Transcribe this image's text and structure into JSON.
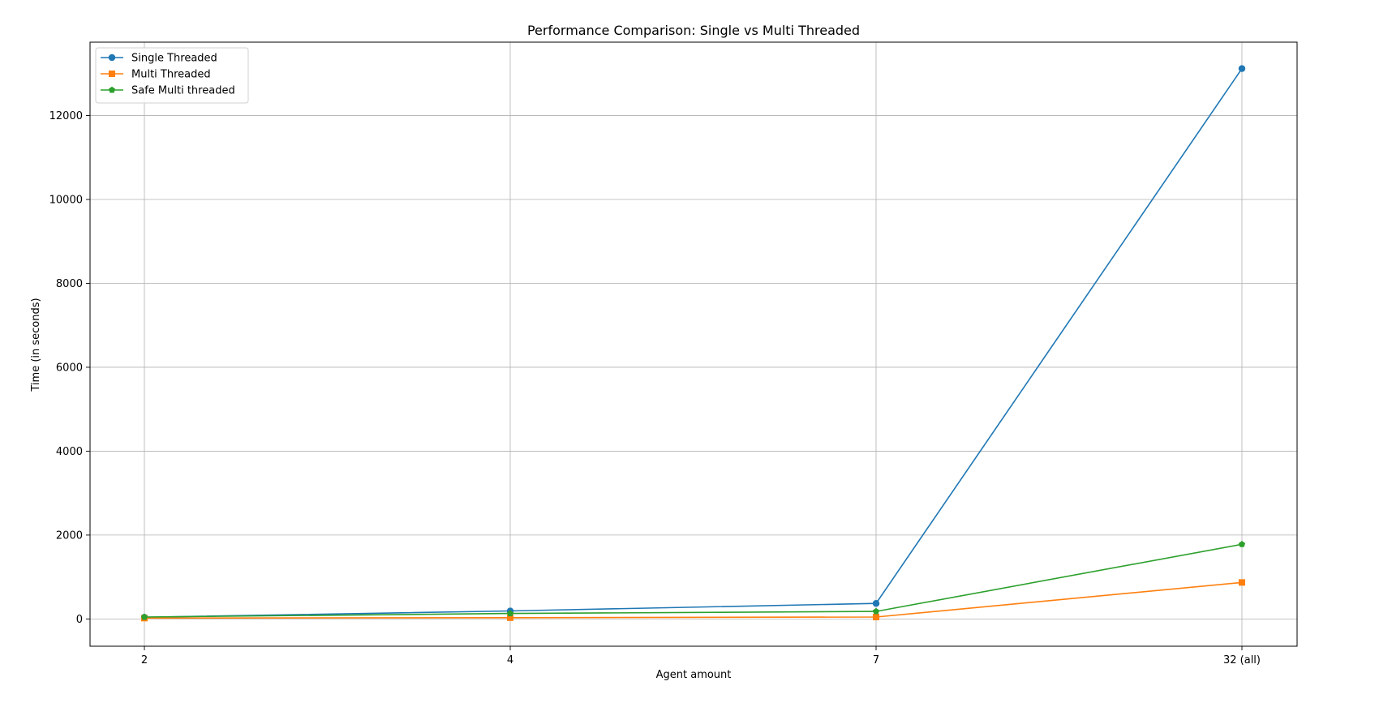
{
  "chart_data": {
    "type": "line",
    "title": "Performance Comparison: Single vs Multi Threaded",
    "xlabel": "Agent amount",
    "ylabel": "Time (in seconds)",
    "categories": [
      "2",
      "4",
      "7",
      "32 (all)"
    ],
    "ylim": [
      -650,
      13750
    ],
    "yticks": [
      0,
      2000,
      4000,
      6000,
      8000,
      10000,
      12000
    ],
    "grid": true,
    "legend_position": "top-left",
    "series": [
      {
        "name": "Single Threaded",
        "color": "#1f77b4",
        "marker": "circle",
        "values": [
          40,
          190,
          370,
          13120
        ]
      },
      {
        "name": "Multi Threaded",
        "color": "#ff7f0e",
        "marker": "square",
        "values": [
          20,
          30,
          45,
          870
        ]
      },
      {
        "name": "Safe Multi threaded",
        "color": "#2ca02c",
        "marker": "pentagon",
        "values": [
          45,
          130,
          180,
          1780
        ]
      }
    ]
  }
}
